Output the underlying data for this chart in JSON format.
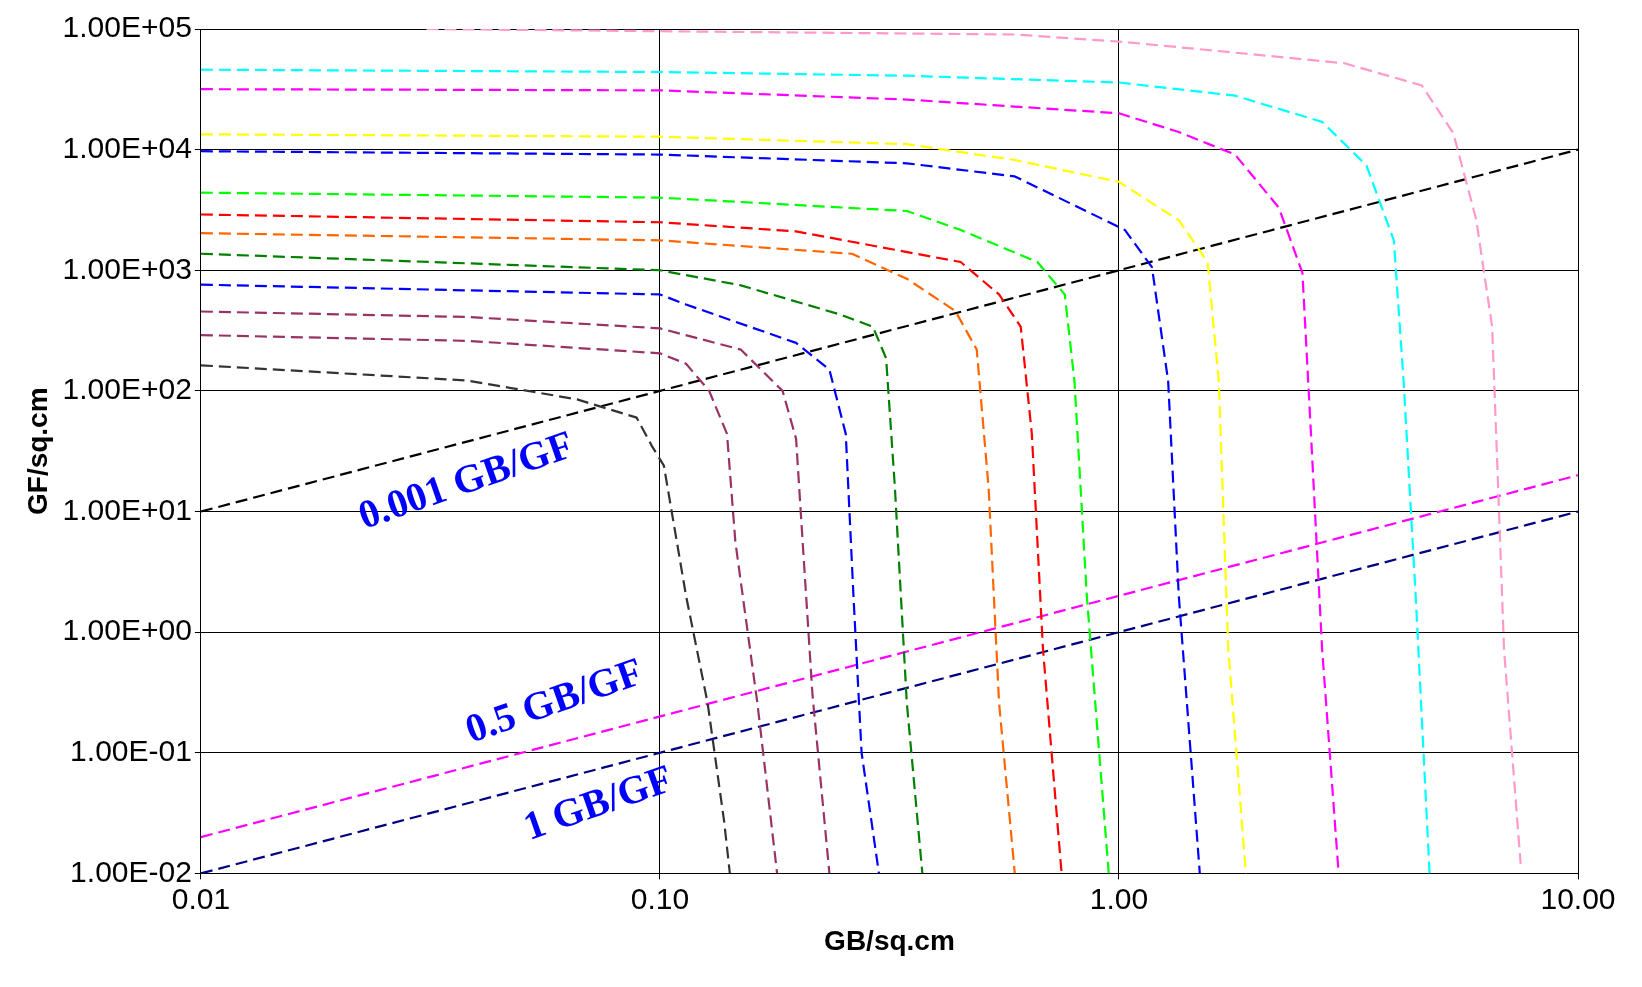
{
  "chart_data": {
    "type": "line",
    "xlabel": "GB/sq.cm",
    "ylabel": "GF/sq.cm",
    "log": "xy",
    "grid": true,
    "legend": false,
    "line_style": "dashed",
    "marker": "none",
    "xlim": [
      0.01,
      10
    ],
    "xticks": [
      0.01,
      {
        "value": 0.1,
        "label": "0.10"
      },
      {
        "value": 1,
        "label": "1.00"
      },
      {
        "value": 10,
        "label": "10.00"
      }
    ],
    "ylim": [
      0.01,
      100000
    ],
    "yticks": [
      {
        "value": 0.01,
        "label": "1.00E-02"
      },
      {
        "value": 0.1,
        "label": "1.00E-01"
      },
      {
        "value": 1,
        "label": "1.00E+00"
      },
      {
        "value": 10,
        "label": "1.00E+01"
      },
      {
        "value": 100,
        "label": "1.00E+02"
      },
      {
        "value": 1000,
        "label": "1.00E+03"
      },
      {
        "value": 10000,
        "label": "1.00E+04"
      },
      {
        "value": 100000,
        "label": "1.00E+05"
      }
    ],
    "series": [
      {
        "color": "#ff99cc",
        "x": [
          0.031,
          0.593,
          1.03,
          3.1,
          4.57,
          5.35,
          6.0,
          6.5,
          6.7,
          6.9,
          7.5
        ],
        "values": [
          100000,
          90000,
          78000,
          52000,
          34000,
          13700,
          2650,
          341,
          15.8,
          0.72,
          0.012
        ]
      },
      {
        "color": "#00ffff",
        "x": [
          0.01,
          0.1,
          0.345,
          1.0,
          1.79,
          2.77,
          3.46,
          3.97,
          4.17,
          4.43,
          4.75
        ],
        "values": [
          46000,
          44000,
          41000,
          36000,
          28000,
          17000,
          7400,
          1770,
          120,
          2.0,
          0.01
        ]
      },
      {
        "color": "#ff00ff",
        "x": [
          0.01,
          0.1,
          0.345,
          1.0,
          1.35,
          1.79,
          2.23,
          2.51,
          2.62,
          2.77,
          3.01
        ],
        "values": [
          31700,
          31000,
          26000,
          20000,
          14000,
          9100,
          3300,
          950,
          44,
          0.73,
          0.01
        ]
      },
      {
        "color": "#ffff00",
        "x": [
          0.01,
          0.1,
          0.345,
          0.593,
          1.0,
          1.35,
          1.56,
          1.65,
          1.73,
          1.89
        ],
        "values": [
          13400,
          12800,
          11100,
          8200,
          5400,
          2600,
          1170,
          120,
          0.73,
          0.01
        ]
      },
      {
        "color": "#0000ff",
        "x": [
          0.01,
          0.1,
          0.345,
          0.593,
          1.03,
          1.18,
          1.28,
          1.35,
          1.5
        ],
        "values": [
          9700,
          9100,
          7700,
          6000,
          2160,
          1060,
          120,
          2.0,
          0.01
        ]
      },
      {
        "color": "#00ff00",
        "x": [
          0.01,
          0.1,
          0.345,
          0.452,
          0.664,
          0.762,
          0.8,
          0.851,
          0.95
        ],
        "values": [
          4400,
          4000,
          3100,
          2160,
          1170,
          630,
          120,
          2.0,
          0.01
        ]
      },
      {
        "color": "#ff0000",
        "x": [
          0.01,
          0.1,
          0.198,
          0.452,
          0.548,
          0.611,
          0.646,
          0.683,
          0.75
        ],
        "values": [
          2900,
          2500,
          2100,
          1170,
          630,
          340,
          44,
          0.73,
          0.01
        ]
      },
      {
        "color": "#ff6600",
        "x": [
          0.01,
          0.1,
          0.262,
          0.345,
          0.44,
          0.49,
          0.52,
          0.548,
          0.593
        ],
        "values": [
          2030,
          1770,
          1370,
          850,
          460,
          220,
          15.8,
          0.26,
          0.01
        ]
      },
      {
        "color": "#008000",
        "x": [
          0.01,
          0.1,
          0.15,
          0.247,
          0.291,
          0.311,
          0.325,
          0.345,
          0.373
        ],
        "values": [
          1370,
          1000,
          750,
          430,
          340,
          186,
          15.8,
          0.26,
          0.01
        ]
      },
      {
        "color": "#0000ff",
        "x": [
          0.01,
          0.1,
          0.114,
          0.198,
          0.234,
          0.254,
          0.264,
          0.275,
          0.3
        ],
        "values": [
          760,
          630,
          520,
          250,
          150,
          44,
          2.0,
          0.1,
          0.01
        ]
      },
      {
        "color": "#993366",
        "x": [
          0.01,
          0.038,
          0.1,
          0.15,
          0.185,
          0.198,
          0.205,
          0.215,
          0.234
        ],
        "values": [
          455,
          410,
          330,
          220,
          100,
          40,
          5,
          0.3,
          0.01
        ]
      },
      {
        "color": "#993366",
        "x": [
          0.01,
          0.038,
          0.1,
          0.114,
          0.128,
          0.14,
          0.146,
          0.163,
          0.18
        ],
        "values": [
          290,
          260,
          205,
          168,
          100,
          44,
          5.6,
          0.26,
          0.01
        ]
      },
      {
        "color": "#333333",
        "x": [
          0.01,
          0.038,
          0.066,
          0.089,
          0.096,
          0.102,
          0.114,
          0.127,
          0.138,
          0.142
        ],
        "values": [
          163,
          122,
          85,
          60,
          35,
          24,
          2.0,
          0.26,
          0.027,
          0.01
        ]
      },
      {
        "color": "#000000",
        "x": [
          0.01,
          10
        ],
        "values": [
          10,
          10000
        ]
      },
      {
        "color": "#ff00ff",
        "x": [
          0.01,
          10
        ],
        "values": [
          0.02,
          20
        ]
      },
      {
        "color": "#000080",
        "x": [
          0.01,
          10
        ],
        "values": [
          0.01,
          10
        ]
      }
    ],
    "annotations": [
      "0.001 GB/GF",
      "0.5 GB/GF",
      "1 GB/GF"
    ]
  }
}
